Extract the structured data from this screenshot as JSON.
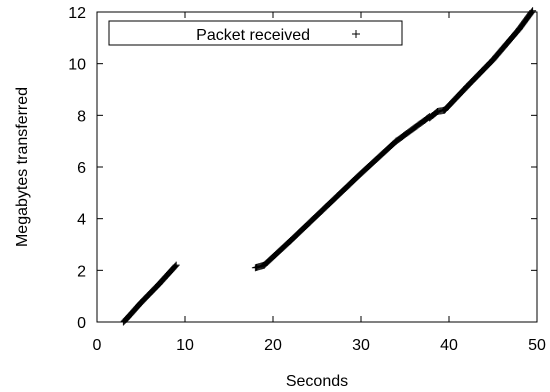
{
  "chart_data": {
    "type": "scatter",
    "title": "",
    "xlabel": "Seconds",
    "ylabel": "Megabytes transferred",
    "xlim": [
      0,
      50
    ],
    "ylim": [
      0,
      12
    ],
    "xticks": [
      0,
      10,
      20,
      30,
      40,
      50
    ],
    "yticks": [
      0,
      2,
      4,
      6,
      8,
      10,
      12
    ],
    "grid": false,
    "legend_position": "top-left",
    "marker": "+",
    "series": [
      {
        "name": "Packet received",
        "segments": [
          {
            "x": [
              3.0,
              3.3,
              5.0,
              7.0,
              9.0
            ],
            "y": [
              0.0,
              0.1,
              0.75,
              1.45,
              2.2
            ]
          },
          {
            "x": [
              18.0,
              19.0,
              22.0,
              26.0,
              30.0,
              34.0,
              37.8
            ],
            "y": [
              2.1,
              2.2,
              3.15,
              4.45,
              5.75,
              7.0,
              7.95
            ]
          },
          {
            "x": [
              37.8,
              38.7,
              39.5,
              42.0,
              45.0,
              48.0,
              49.5
            ],
            "y": [
              7.9,
              8.15,
              8.2,
              9.1,
              10.15,
              11.35,
              12.05
            ]
          }
        ]
      }
    ]
  }
}
